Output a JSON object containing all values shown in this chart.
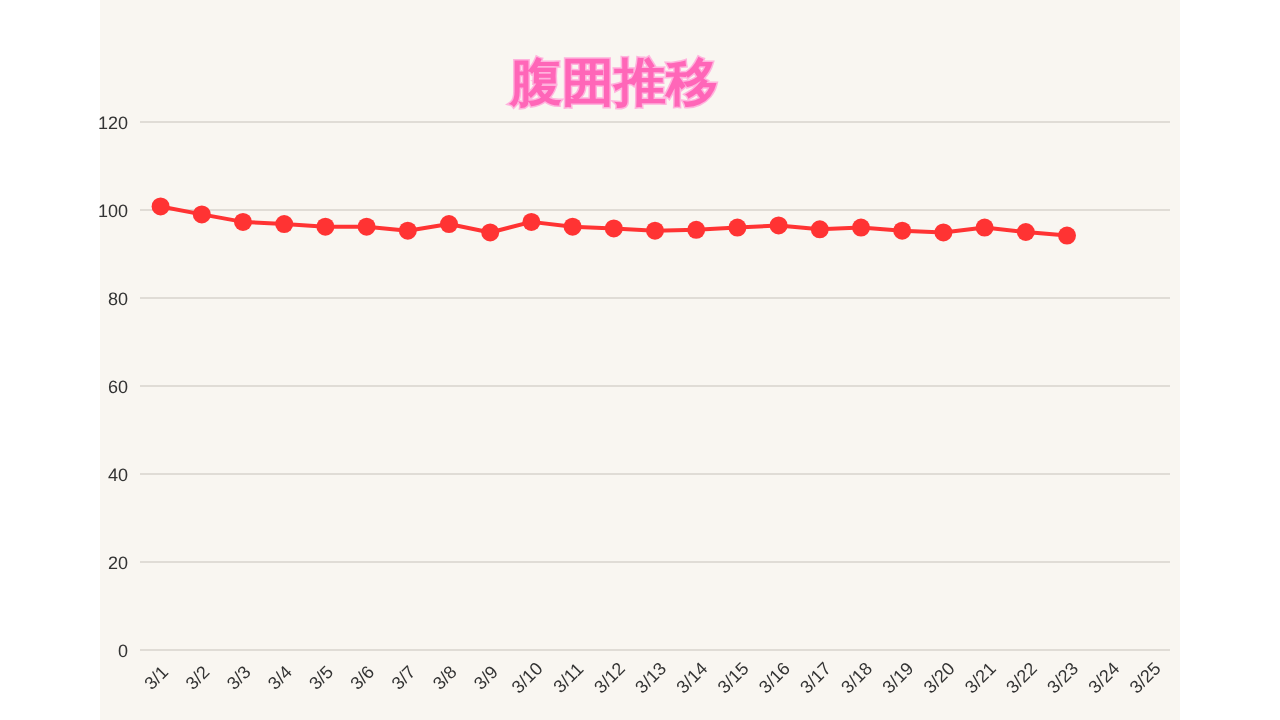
{
  "chart_data": {
    "type": "line",
    "title": "腹囲推移",
    "categories": [
      "3/1",
      "3/2",
      "3/3",
      "3/4",
      "3/5",
      "3/6",
      "3/7",
      "3/8",
      "3/9",
      "3/10",
      "3/11",
      "3/12",
      "3/13",
      "3/14",
      "3/15",
      "3/16",
      "3/17",
      "3/18",
      "3/19",
      "3/20",
      "3/21",
      "3/22",
      "3/23",
      "3/24",
      "3/25"
    ],
    "series": [
      {
        "color": "#ff3333",
        "values": [
          100.8,
          99.0,
          97.3,
          96.8,
          96.2,
          96.2,
          95.3,
          96.8,
          94.9,
          97.3,
          96.2,
          95.8,
          95.3,
          95.5,
          96.0,
          96.5,
          95.6,
          96.0,
          95.3,
          94.9,
          96.0,
          95.0,
          94.2,
          null,
          null
        ]
      }
    ],
    "ylim": [
      0,
      120
    ],
    "yticks": [
      0,
      20,
      40,
      60,
      80,
      100,
      120
    ],
    "grid": "y",
    "marker": "circle"
  }
}
